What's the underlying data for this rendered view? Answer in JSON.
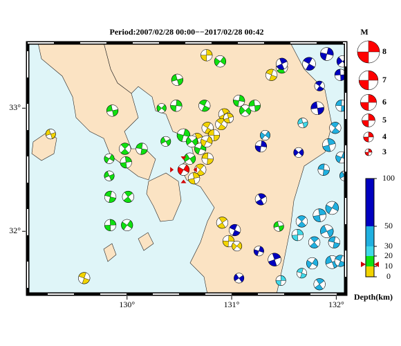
{
  "map": {
    "title": "Period:2007/02/28 00:00−−2017/02/28 00:42",
    "xlim": [
      129.05,
      132.09
    ],
    "ylim": [
      31.49,
      33.53
    ],
    "xticks": [
      {
        "value": 130,
        "label": "130°"
      },
      {
        "value": 131,
        "label": "131°"
      },
      {
        "value": 132,
        "label": "132°"
      }
    ],
    "yticks": [
      {
        "value": 33,
        "label": "33°"
      },
      {
        "value": 32,
        "label": "32°"
      }
    ],
    "land_color": "#fbe3c3",
    "sea_color": "#dff5f8",
    "magnitude_legend": {
      "title": "M",
      "values": [
        8,
        7,
        6,
        5,
        4,
        3
      ],
      "color": "#ff0000"
    },
    "depth_scale": {
      "label": "Depth(km)",
      "ticks": [
        0,
        10,
        20,
        30,
        50,
        100
      ],
      "colors": [
        "#f2d400",
        "#10e010",
        "#40d8e8",
        "#20b0e0",
        "#0000c0"
      ]
    },
    "latest_event": {
      "lon": 130.54,
      "lat": 32.5,
      "depth": 12,
      "mag": 4.5,
      "color": "#ff0000"
    },
    "events": [
      {
        "lon": 130.76,
        "lat": 33.43,
        "depth": 8,
        "mag": 4.5
      },
      {
        "lon": 130.89,
        "lat": 33.38,
        "depth": 15,
        "mag": 4.5
      },
      {
        "lon": 130.48,
        "lat": 33.23,
        "depth": 15,
        "mag": 4.5
      },
      {
        "lon": 131.38,
        "lat": 33.27,
        "depth": 5,
        "mag": 4.5
      },
      {
        "lon": 131.48,
        "lat": 33.33,
        "depth": 15,
        "mag": 4.5
      },
      {
        "lon": 130.47,
        "lat": 33.02,
        "depth": 15,
        "mag": 4.5
      },
      {
        "lon": 130.33,
        "lat": 33.0,
        "depth": 15,
        "mag": 3.8
      },
      {
        "lon": 129.86,
        "lat": 32.98,
        "depth": 15,
        "mag": 4.5
      },
      {
        "lon": 130.74,
        "lat": 33.02,
        "depth": 15,
        "mag": 4.5
      },
      {
        "lon": 130.93,
        "lat": 32.95,
        "depth": 5,
        "mag": 4.5
      },
      {
        "lon": 131.07,
        "lat": 33.06,
        "depth": 15,
        "mag": 4.5
      },
      {
        "lon": 131.13,
        "lat": 32.98,
        "depth": 15,
        "mag": 4.5
      },
      {
        "lon": 131.22,
        "lat": 33.02,
        "depth": 15,
        "mag": 4.5
      },
      {
        "lon": 130.77,
        "lat": 32.84,
        "depth": 5,
        "mag": 4.5
      },
      {
        "lon": 130.67,
        "lat": 32.75,
        "depth": 5,
        "mag": 4.5
      },
      {
        "lon": 130.54,
        "lat": 32.78,
        "depth": 15,
        "mag": 5
      },
      {
        "lon": 130.62,
        "lat": 32.73,
        "depth": 15,
        "mag": 4.5
      },
      {
        "lon": 130.83,
        "lat": 32.78,
        "depth": 5,
        "mag": 4.5
      },
      {
        "lon": 130.9,
        "lat": 32.87,
        "depth": 5,
        "mag": 4.5
      },
      {
        "lon": 130.97,
        "lat": 32.92,
        "depth": 5,
        "mag": 4
      },
      {
        "lon": 130.7,
        "lat": 32.67,
        "depth": 15,
        "mag": 4.5
      },
      {
        "lon": 130.6,
        "lat": 32.59,
        "depth": 15,
        "mag": 4.5
      },
      {
        "lon": 130.77,
        "lat": 32.59,
        "depth": 5,
        "mag": 4.5
      },
      {
        "lon": 130.7,
        "lat": 32.5,
        "depth": 5,
        "mag": 4.5
      },
      {
        "lon": 130.64,
        "lat": 32.43,
        "depth": 5,
        "mag": 4.5
      },
      {
        "lon": 130.76,
        "lat": 32.73,
        "depth": 5,
        "mag": 4.5
      },
      {
        "lon": 130.37,
        "lat": 32.73,
        "depth": 15,
        "mag": 4
      },
      {
        "lon": 130.14,
        "lat": 32.67,
        "depth": 15,
        "mag": 4.5
      },
      {
        "lon": 129.98,
        "lat": 32.67,
        "depth": 15,
        "mag": 4.5
      },
      {
        "lon": 129.99,
        "lat": 32.56,
        "depth": 15,
        "mag": 4.5
      },
      {
        "lon": 129.83,
        "lat": 32.59,
        "depth": 15,
        "mag": 4
      },
      {
        "lon": 129.83,
        "lat": 32.45,
        "depth": 15,
        "mag": 4
      },
      {
        "lon": 129.84,
        "lat": 32.28,
        "depth": 15,
        "mag": 4.5
      },
      {
        "lon": 130.01,
        "lat": 32.28,
        "depth": 15,
        "mag": 4.5
      },
      {
        "lon": 129.84,
        "lat": 32.05,
        "depth": 15,
        "mag": 4.5
      },
      {
        "lon": 130.0,
        "lat": 32.05,
        "depth": 15,
        "mag": 4.5
      },
      {
        "lon": 129.27,
        "lat": 32.79,
        "depth": 5,
        "mag": 4
      },
      {
        "lon": 129.59,
        "lat": 31.62,
        "depth": 5,
        "mag": 4.5
      },
      {
        "lon": 130.91,
        "lat": 32.07,
        "depth": 5,
        "mag": 4.5
      },
      {
        "lon": 130.97,
        "lat": 31.92,
        "depth": 5,
        "mag": 4.5
      },
      {
        "lon": 131.05,
        "lat": 31.88,
        "depth": 5,
        "mag": 4
      },
      {
        "lon": 131.45,
        "lat": 32.04,
        "depth": 15,
        "mag": 4
      },
      {
        "lon": 131.03,
        "lat": 32.01,
        "depth": 60,
        "mag": 4.5
      },
      {
        "lon": 131.28,
        "lat": 32.26,
        "depth": 60,
        "mag": 4.5
      },
      {
        "lon": 131.28,
        "lat": 32.69,
        "depth": 60,
        "mag": 4.5
      },
      {
        "lon": 131.64,
        "lat": 32.64,
        "depth": 60,
        "mag": 4
      },
      {
        "lon": 131.82,
        "lat": 33.0,
        "depth": 60,
        "mag": 5
      },
      {
        "lon": 131.74,
        "lat": 33.36,
        "depth": 60,
        "mag": 5
      },
      {
        "lon": 131.48,
        "lat": 33.36,
        "depth": 60,
        "mag": 4.5
      },
      {
        "lon": 131.91,
        "lat": 33.44,
        "depth": 60,
        "mag": 5
      },
      {
        "lon": 132.06,
        "lat": 33.38,
        "depth": 60,
        "mag": 4.5
      },
      {
        "lon": 132.04,
        "lat": 33.27,
        "depth": 60,
        "mag": 4.5
      },
      {
        "lon": 131.84,
        "lat": 33.18,
        "depth": 60,
        "mag": 4
      },
      {
        "lon": 131.41,
        "lat": 31.77,
        "depth": 60,
        "mag": 5
      },
      {
        "lon": 131.26,
        "lat": 31.84,
        "depth": 60,
        "mag": 4
      },
      {
        "lon": 131.07,
        "lat": 31.62,
        "depth": 60,
        "mag": 4
      },
      {
        "lon": 132.05,
        "lat": 33.02,
        "depth": 35,
        "mag": 4.5
      },
      {
        "lon": 131.99,
        "lat": 32.84,
        "depth": 35,
        "mag": 4.5
      },
      {
        "lon": 131.93,
        "lat": 32.7,
        "depth": 35,
        "mag": 5
      },
      {
        "lon": 132.05,
        "lat": 32.6,
        "depth": 35,
        "mag": 4.5
      },
      {
        "lon": 132.08,
        "lat": 32.45,
        "depth": 35,
        "mag": 4
      },
      {
        "lon": 131.88,
        "lat": 32.5,
        "depth": 35,
        "mag": 4.5
      },
      {
        "lon": 131.67,
        "lat": 32.08,
        "depth": 35,
        "mag": 4.5
      },
      {
        "lon": 131.84,
        "lat": 32.13,
        "depth": 35,
        "mag": 5
      },
      {
        "lon": 131.96,
        "lat": 32.19,
        "depth": 35,
        "mag": 5
      },
      {
        "lon": 131.91,
        "lat": 32.0,
        "depth": 35,
        "mag": 5
      },
      {
        "lon": 131.98,
        "lat": 31.91,
        "depth": 35,
        "mag": 4.5
      },
      {
        "lon": 131.79,
        "lat": 31.91,
        "depth": 35,
        "mag": 4.5
      },
      {
        "lon": 131.63,
        "lat": 31.97,
        "depth": 25,
        "mag": 4.5
      },
      {
        "lon": 131.77,
        "lat": 31.74,
        "depth": 35,
        "mag": 4.5
      },
      {
        "lon": 131.96,
        "lat": 31.75,
        "depth": 35,
        "mag": 5
      },
      {
        "lon": 131.67,
        "lat": 31.66,
        "depth": 25,
        "mag": 4
      },
      {
        "lon": 131.84,
        "lat": 31.57,
        "depth": 35,
        "mag": 4.5
      },
      {
        "lon": 131.47,
        "lat": 31.6,
        "depth": 30,
        "mag": 4
      },
      {
        "lon": 131.32,
        "lat": 32.78,
        "depth": 35,
        "mag": 4
      },
      {
        "lon": 131.68,
        "lat": 32.88,
        "depth": 25,
        "mag": 4
      },
      {
        "lon": 132.04,
        "lat": 31.76,
        "depth": 40,
        "mag": 4.5
      }
    ]
  }
}
